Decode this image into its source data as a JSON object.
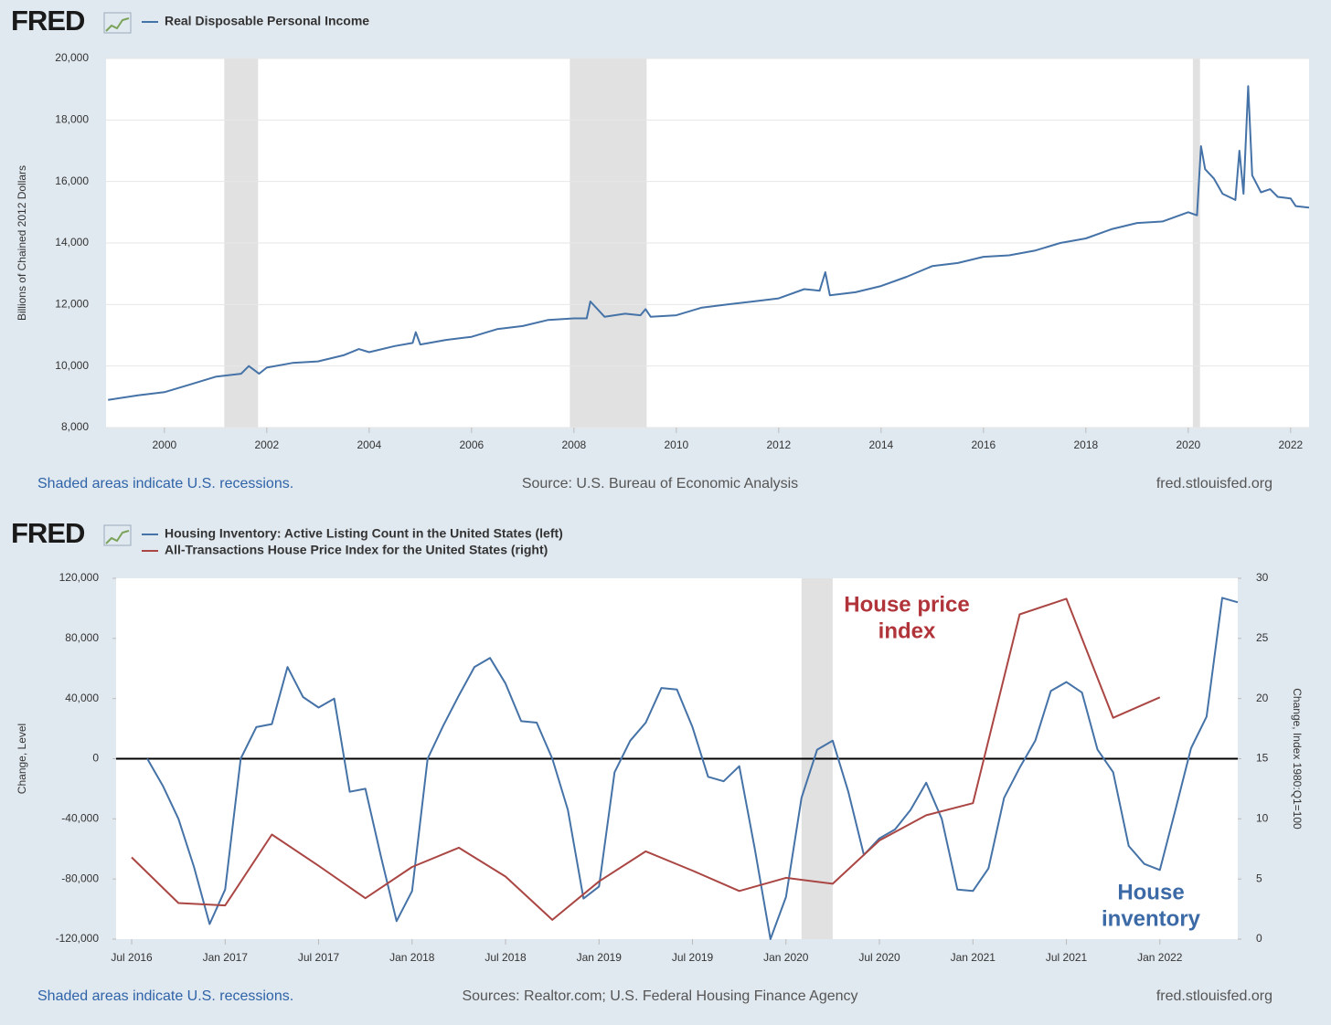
{
  "chart_data": [
    {
      "type": "line",
      "logo": "FRED",
      "y_label": "Billions of Chained 2012 Dollars",
      "footer": {
        "left": "Shaded areas indicate U.S. recessions.",
        "center": "Source: U.S. Bureau of Economic Analysis",
        "right": "fred.stlouisfed.org"
      },
      "xlim": [
        1998.86,
        2022.36
      ],
      "xticks": [
        2000,
        2002,
        2004,
        2006,
        2008,
        2010,
        2012,
        2014,
        2016,
        2018,
        2020,
        2022
      ],
      "ylim": [
        8000,
        20000
      ],
      "yticks": [
        {
          "value": 8000,
          "label": "8,000"
        },
        {
          "value": 10000,
          "label": "10,000"
        },
        {
          "value": 12000,
          "label": "12,000"
        },
        {
          "value": 14000,
          "label": "14,000"
        },
        {
          "value": 16000,
          "label": "16,000"
        },
        {
          "value": 18000,
          "label": "18,000"
        },
        {
          "value": 20000,
          "label": "20,000"
        }
      ],
      "grid": true,
      "recessions": [
        [
          2001.17,
          2001.83
        ],
        [
          2007.92,
          2009.42
        ],
        [
          2020.09,
          2020.23
        ]
      ],
      "series": [
        {
          "name": "Real Disposable Personal Income",
          "color": "#4572a7",
          "x": [
            1998.9,
            1999.5,
            2000.0,
            2000.5,
            2001.0,
            2001.5,
            2001.65,
            2001.85,
            2002.0,
            2002.5,
            2003.0,
            2003.5,
            2003.8,
            2004.0,
            2004.5,
            2004.85,
            2004.91,
            2005.0,
            2005.5,
            2006.0,
            2006.5,
            2007.0,
            2007.5,
            2008.0,
            2008.25,
            2008.32,
            2008.6,
            2009.0,
            2009.3,
            2009.4,
            2009.5,
            2010.0,
            2010.5,
            2011.0,
            2011.5,
            2012.0,
            2012.5,
            2012.8,
            2012.91,
            2013.0,
            2013.5,
            2014.0,
            2014.5,
            2015.0,
            2015.5,
            2016.0,
            2016.5,
            2017.0,
            2017.5,
            2018.0,
            2018.5,
            2019.0,
            2019.5,
            2020.0,
            2020.17,
            2020.25,
            2020.33,
            2020.5,
            2020.67,
            2020.92,
            2021.0,
            2021.08,
            2021.17,
            2021.25,
            2021.42,
            2021.6,
            2021.75,
            2022.0,
            2022.1,
            2022.36
          ],
          "values": [
            8900,
            9050,
            9150,
            9400,
            9650,
            9750,
            10000,
            9750,
            9950,
            10100,
            10150,
            10350,
            10550,
            10450,
            10650,
            10750,
            11100,
            10700,
            10850,
            10950,
            11200,
            11300,
            11500,
            11550,
            11550,
            12100,
            11600,
            11700,
            11650,
            11850,
            11600,
            11650,
            11900,
            12000,
            12100,
            12200,
            12500,
            12450,
            13050,
            12300,
            12400,
            12600,
            12900,
            13250,
            13350,
            13550,
            13600,
            13750,
            14000,
            14150,
            14450,
            14650,
            14700,
            15000,
            14900,
            17150,
            16400,
            16100,
            15600,
            15400,
            17000,
            15600,
            19100,
            16200,
            15650,
            15750,
            15500,
            15450,
            15200,
            15150
          ]
        }
      ]
    },
    {
      "type": "line",
      "logo": "FRED",
      "y_label": "Change, Level",
      "y2_label": "Change, Index 1980:Q1=100",
      "footer": {
        "left": "Shaded areas indicate U.S. recessions.",
        "center": "Sources: Realtor.com; U.S. Federal Housing Finance Agency",
        "right": "fred.stlouisfed.org"
      },
      "xlim": [
        "2016-06",
        "2022-06"
      ],
      "xticks": [
        {
          "value": "2016-07",
          "label": "Jul 2016"
        },
        {
          "value": "2017-01",
          "label": "Jan 2017"
        },
        {
          "value": "2017-07",
          "label": "Jul 2017"
        },
        {
          "value": "2018-01",
          "label": "Jan 2018"
        },
        {
          "value": "2018-07",
          "label": "Jul 2018"
        },
        {
          "value": "2019-01",
          "label": "Jan 2019"
        },
        {
          "value": "2019-07",
          "label": "Jul 2019"
        },
        {
          "value": "2020-01",
          "label": "Jan 2020"
        },
        {
          "value": "2020-07",
          "label": "Jul 2020"
        },
        {
          "value": "2021-01",
          "label": "Jan 2021"
        },
        {
          "value": "2021-07",
          "label": "Jul 2021"
        },
        {
          "value": "2022-01",
          "label": "Jan 2022"
        }
      ],
      "ylim": [
        -120000,
        120000
      ],
      "yticks": [
        {
          "value": -120000,
          "label": "-120,000"
        },
        {
          "value": -80000,
          "label": "-80,000"
        },
        {
          "value": -40000,
          "label": "-40,000"
        },
        0,
        {
          "value": 40000,
          "label": "40,000"
        },
        {
          "value": 80000,
          "label": "80,000"
        },
        {
          "value": 120000,
          "label": "120,000"
        }
      ],
      "y2lim": [
        0,
        30
      ],
      "y2ticks": [
        0,
        5,
        10,
        15,
        20,
        25,
        30
      ],
      "grid": false,
      "zero_line": true,
      "recessions": [
        [
          "2020-02",
          "2020-04"
        ]
      ],
      "annotations": [
        {
          "text": [
            "House price",
            "index"
          ],
          "color": "#b0343a"
        },
        {
          "text": [
            "House",
            "inventory"
          ],
          "color": "#3b6aa6"
        }
      ],
      "series": [
        {
          "name": "Housing Inventory: Active Listing Count in the United States (left)",
          "color": "#4572a7",
          "x": [
            "2016-08",
            "2016-09",
            "2016-10",
            "2016-11",
            "2016-12",
            "2017-01",
            "2017-02",
            "2017-03",
            "2017-04",
            "2017-05",
            "2017-06",
            "2017-07",
            "2017-08",
            "2017-09",
            "2017-10",
            "2017-11",
            "2017-12",
            "2018-01",
            "2018-02",
            "2018-03",
            "2018-04",
            "2018-05",
            "2018-06",
            "2018-07",
            "2018-08",
            "2018-09",
            "2018-10",
            "2018-11",
            "2018-12",
            "2019-01",
            "2019-02",
            "2019-03",
            "2019-04",
            "2019-05",
            "2019-06",
            "2019-07",
            "2019-08",
            "2019-09",
            "2019-10",
            "2019-11",
            "2019-12",
            "2020-01",
            "2020-02",
            "2020-03",
            "2020-04",
            "2020-05",
            "2020-06",
            "2020-07",
            "2020-08",
            "2020-09",
            "2020-10",
            "2020-11",
            "2020-12",
            "2021-01",
            "2021-02",
            "2021-03",
            "2021-04",
            "2021-05",
            "2021-06",
            "2021-07",
            "2021-08",
            "2021-09",
            "2021-10",
            "2021-11",
            "2021-12",
            "2022-01",
            "2022-02",
            "2022-03",
            "2022-04",
            "2022-05",
            "2022-06"
          ],
          "values": [
            0,
            -18000,
            -40000,
            -72000,
            -110000,
            -87000,
            0,
            21000,
            23000,
            61000,
            41000,
            34000,
            40000,
            -22000,
            -20000,
            -65000,
            -108000,
            -88000,
            0,
            22000,
            42000,
            61000,
            67000,
            50000,
            25000,
            24000,
            0,
            -34000,
            -93000,
            -85000,
            -9000,
            12000,
            24000,
            47000,
            46000,
            21000,
            -12000,
            -15000,
            -5000,
            -60000,
            -120000,
            -92000,
            -26000,
            6000,
            12000,
            -22000,
            -64000,
            -53000,
            -47000,
            -34000,
            -16000,
            -40000,
            -87000,
            -88000,
            -73000,
            -26000,
            -6000,
            12000,
            45000,
            51000,
            44000,
            6000,
            -9000,
            -58000,
            -70000,
            -74000,
            -34000,
            7000,
            28000,
            107000,
            104000
          ]
        },
        {
          "name": "All-Transactions House Price Index for the United States (right)",
          "color": "#aa4643",
          "axis": "y2",
          "x": [
            "2016-07",
            "2016-10",
            "2017-01",
            "2017-04",
            "2017-07",
            "2017-10",
            "2018-01",
            "2018-04",
            "2018-07",
            "2018-10",
            "2019-01",
            "2019-04",
            "2019-07",
            "2019-10",
            "2020-01",
            "2020-04",
            "2020-07",
            "2020-10",
            "2021-01",
            "2021-04",
            "2021-07",
            "2021-10",
            "2022-01"
          ],
          "values": [
            6.8,
            3.0,
            2.8,
            8.7,
            6.1,
            3.4,
            6.0,
            7.6,
            5.2,
            1.6,
            4.8,
            7.3,
            5.7,
            4.0,
            5.1,
            4.6,
            8.2,
            10.3,
            11.3,
            27.0,
            28.3,
            18.4,
            20.1
          ]
        }
      ]
    }
  ]
}
